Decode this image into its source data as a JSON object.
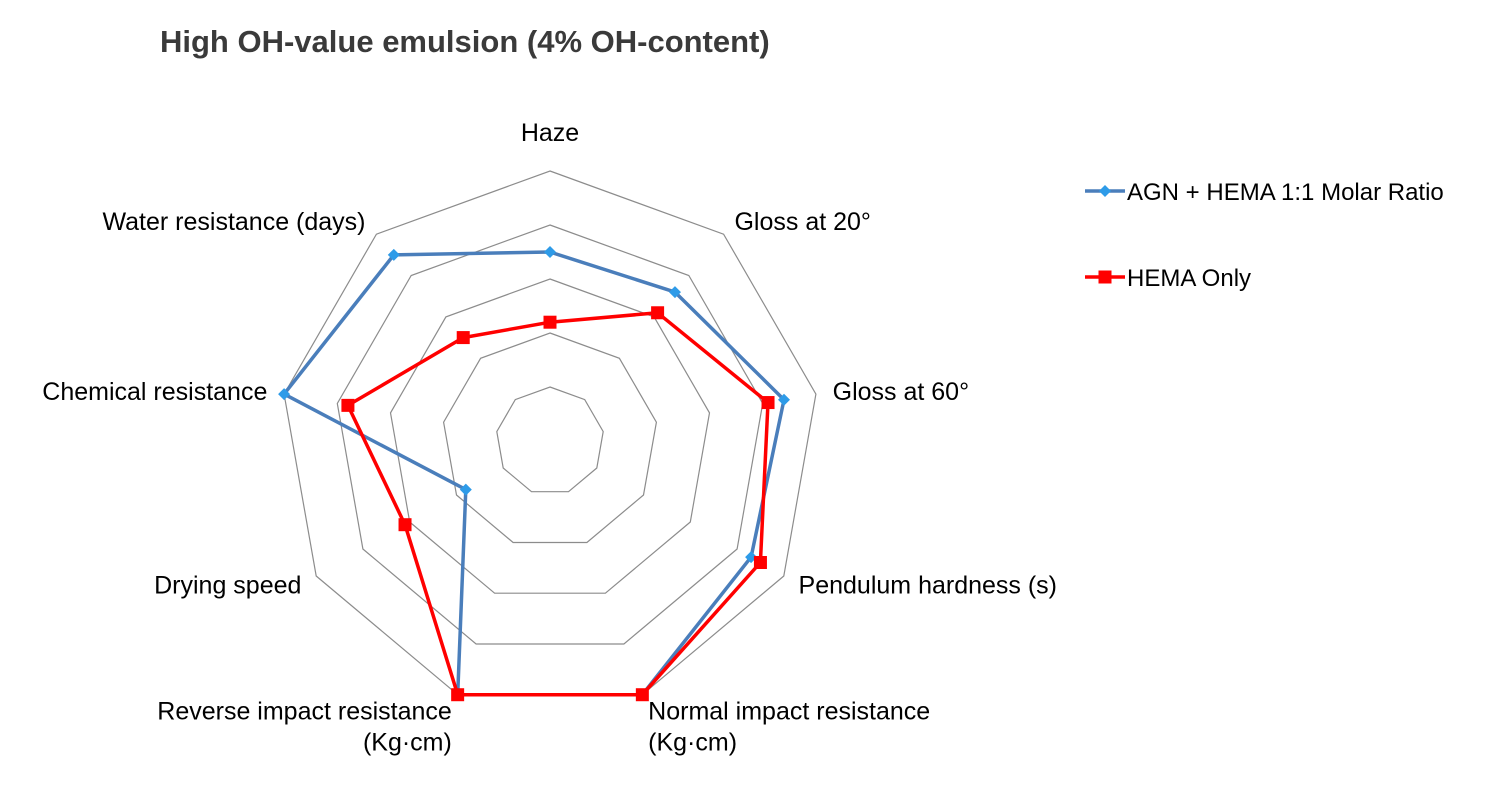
{
  "chart_data": {
    "type": "radar",
    "title": "High OH-value emulsion (4% OH-content)",
    "axes": [
      [
        "Haze"
      ],
      [
        "Gloss at 20°"
      ],
      [
        "Gloss at 60°"
      ],
      [
        "Pendulum hardness (s)"
      ],
      [
        "Normal impact resistance",
        "(Kg·cm)"
      ],
      [
        "Reverse impact resistance",
        "(Kg·cm)"
      ],
      [
        "Drying speed"
      ],
      [
        "Chemical resistance"
      ],
      [
        "Water resistance (days)"
      ]
    ],
    "rmax": 5,
    "rings": 5,
    "grid": true,
    "legend_position": "right",
    "series": [
      {
        "name": "AGN + HEMA 1:1 Molar Ratio",
        "color": "#4a7ebb",
        "marker": "diamond",
        "marker_color": "#2e9be8",
        "values": [
          3.5,
          3.6,
          4.4,
          4.3,
          5.0,
          5.0,
          1.8,
          5.0,
          4.5
        ]
      },
      {
        "name": "HEMA Only",
        "color": "#ff0000",
        "marker": "square",
        "marker_color": "#ff0000",
        "values": [
          2.2,
          3.1,
          4.1,
          4.5,
          5.0,
          5.0,
          3.1,
          3.8,
          2.5
        ]
      }
    ]
  }
}
